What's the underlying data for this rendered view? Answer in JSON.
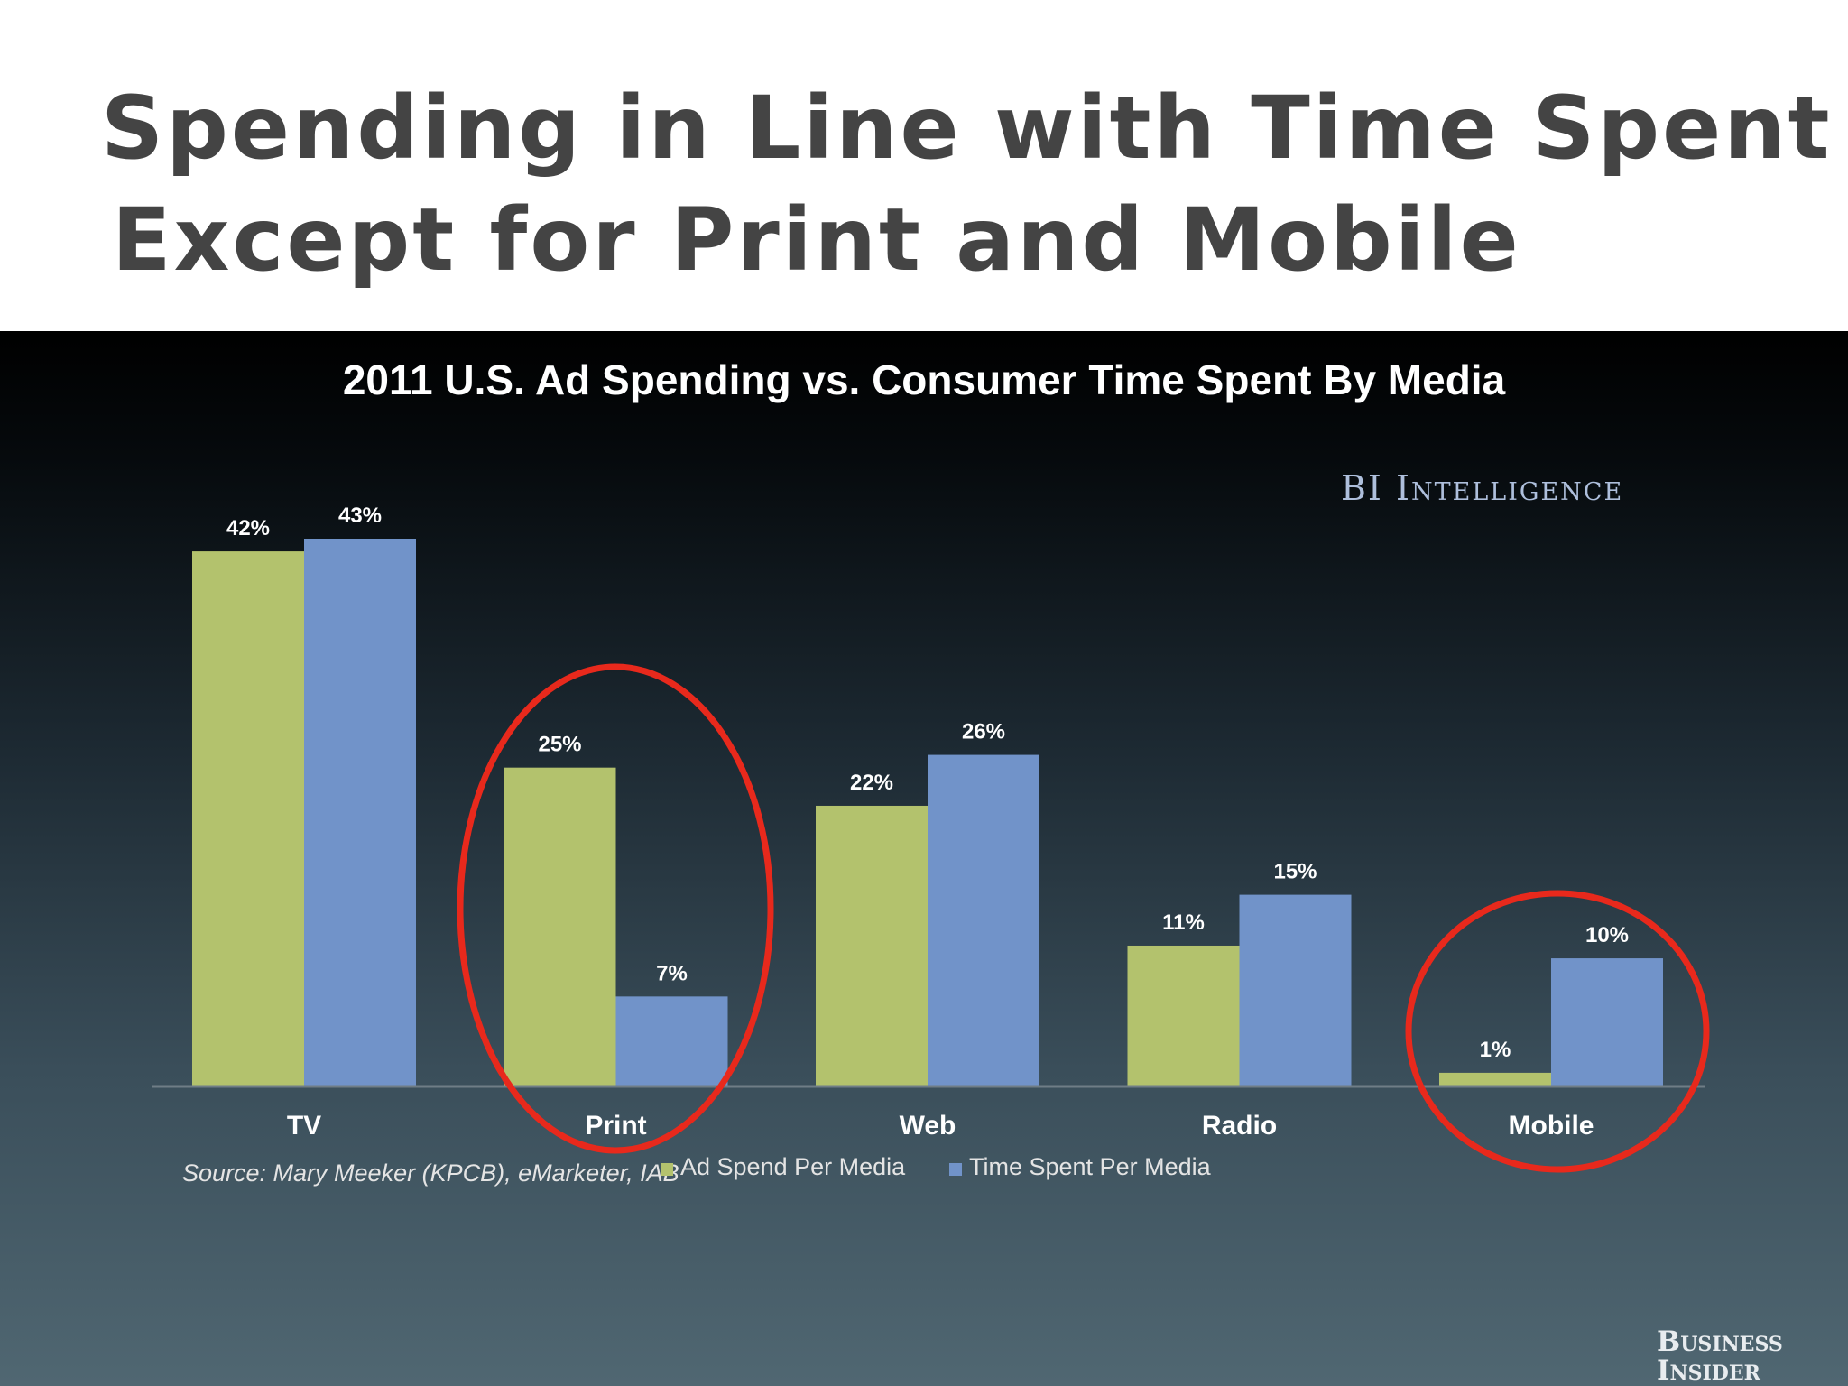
{
  "slide": {
    "title_line1": "Spending in Line with Time Spent",
    "title_line2": "Except for Print and Mobile"
  },
  "branding": {
    "bi_intelligence": "BI Intelligence",
    "business_insider_line1": "Business",
    "business_insider_line2": "Insider"
  },
  "colors": {
    "ad_spend": "#b3c26d",
    "time_spent": "#7193c9",
    "highlight": "#e8291c",
    "axis": "#6f7d86",
    "label_text": "#ffffff"
  },
  "chart_data": {
    "type": "bar",
    "title": "2011 U.S. Ad Spending vs. Consumer Time Spent By Media",
    "categories": [
      "TV",
      "Print",
      "Web",
      "Radio",
      "Mobile"
    ],
    "series": [
      {
        "name": "Ad Spend Per Media",
        "values": [
          42,
          25,
          22,
          11,
          1
        ],
        "labels": [
          "42%",
          "25%",
          "22%",
          "11%",
          "1%"
        ],
        "color": "#b3c26d"
      },
      {
        "name": "Time Spent Per Media",
        "values": [
          43,
          7,
          26,
          15,
          10
        ],
        "labels": [
          "43%",
          "7%",
          "26%",
          "15%",
          "10%"
        ],
        "color": "#7193c9"
      }
    ],
    "ylim": [
      0,
      43
    ],
    "grid": false,
    "legend_position": "bottom",
    "source": "Source: Mary Meeker (KPCB), eMarketer, IAB",
    "highlighted_categories": [
      "Print",
      "Mobile"
    ]
  }
}
